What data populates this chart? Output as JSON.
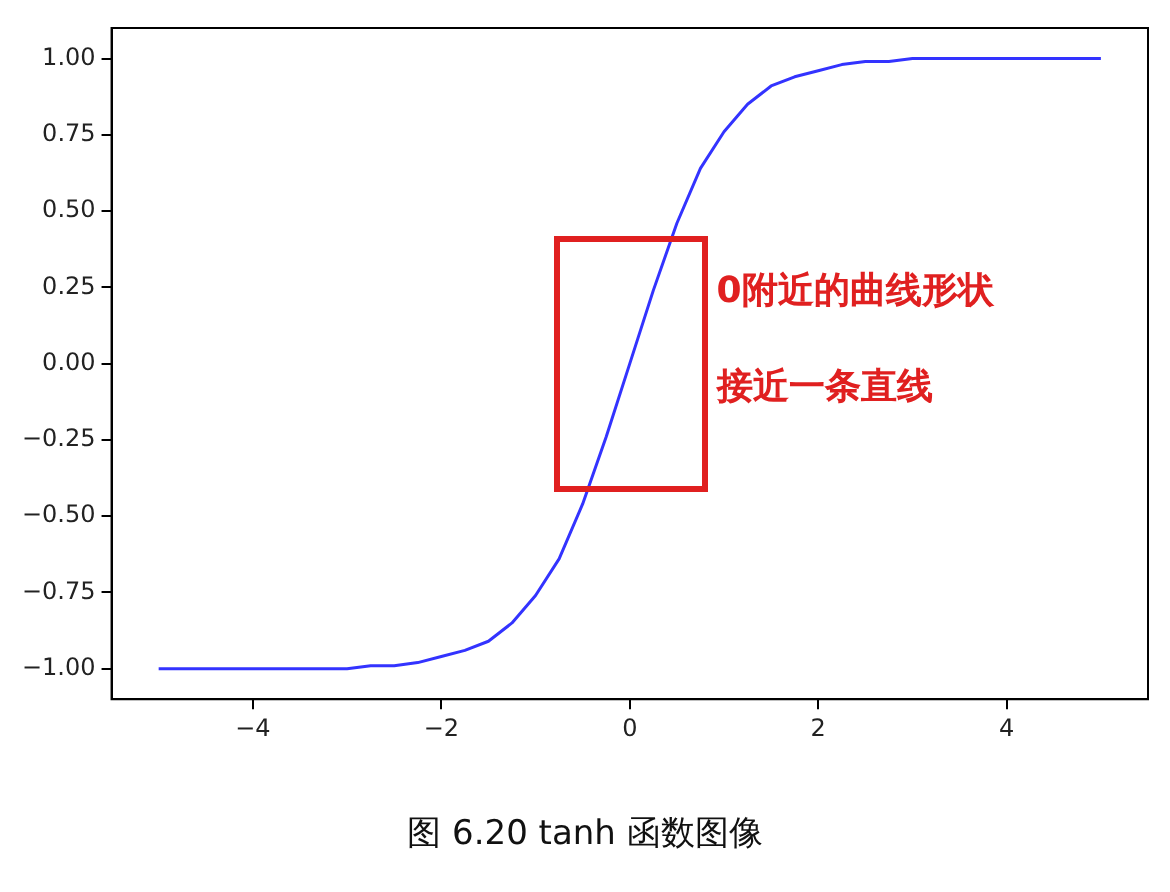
{
  "chart_data": {
    "type": "line",
    "x": [
      -5,
      -4.75,
      -4.5,
      -4.25,
      -4,
      -3.75,
      -3.5,
      -3.25,
      -3,
      -2.75,
      -2.5,
      -2.25,
      -2,
      -1.75,
      -1.5,
      -1.25,
      -1,
      -0.75,
      -0.5,
      -0.25,
      0,
      0.25,
      0.5,
      0.75,
      1,
      1.25,
      1.5,
      1.75,
      2,
      2.25,
      2.5,
      2.75,
      3,
      3.25,
      3.5,
      3.75,
      4,
      4.25,
      4.5,
      4.75,
      5
    ],
    "series": [
      {
        "color": "#3333ff",
        "values": [
          -1.0,
          -1.0,
          -1.0,
          -1.0,
          -1.0,
          -1.0,
          -1.0,
          -1.0,
          -1.0,
          -0.99,
          -0.99,
          -0.98,
          -0.96,
          -0.94,
          -0.91,
          -0.85,
          -0.76,
          -0.64,
          -0.46,
          -0.24,
          0,
          0.24,
          0.46,
          0.64,
          0.76,
          0.85,
          0.91,
          0.94,
          0.96,
          0.98,
          0.99,
          0.99,
          1.0,
          1.0,
          1.0,
          1.0,
          1.0,
          1.0,
          1.0,
          1.0,
          1.0
        ]
      }
    ],
    "xlim": [
      -5.5,
      5.5
    ],
    "xticks": [
      {
        "value": -4,
        "label": "−4"
      },
      {
        "value": -2,
        "label": "−2"
      },
      0,
      2,
      4
    ],
    "ylim": [
      -1.1,
      1.1
    ],
    "yticks": [
      {
        "value": -1,
        "label": "−1.00"
      },
      {
        "value": -0.75,
        "label": "−0.75"
      },
      {
        "value": -0.5,
        "label": "−0.50"
      },
      {
        "value": -0.25,
        "label": "−0.25"
      },
      {
        "value": 0,
        "label": "0.00"
      },
      {
        "value": 0.25,
        "label": "0.25"
      },
      {
        "value": 0.5,
        "label": "0.50"
      },
      {
        "value": 0.75,
        "label": "0.75"
      },
      {
        "value": 1,
        "label": "1.00"
      }
    ],
    "grid": false,
    "legend": false,
    "marker": "none",
    "line_style": "solid",
    "annotations": [
      "0附近的曲线形状",
      "接近一条直线",
      "图 6.20 tanh 函数图像"
    ]
  }
}
